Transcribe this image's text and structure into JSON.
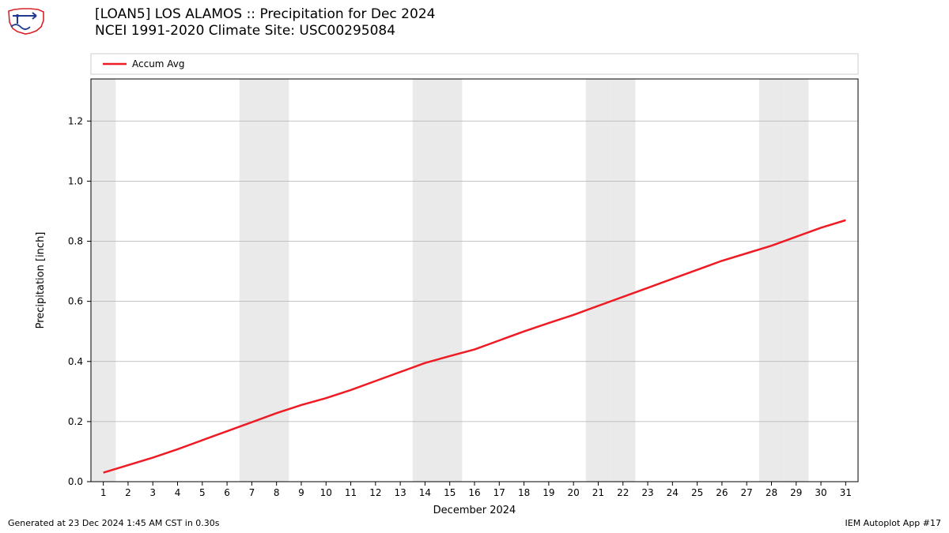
{
  "title_line1": "[LOAN5] LOS ALAMOS :: Precipitation for Dec 2024",
  "title_line2": "NCEI 1991-2020 Climate Site: USC00295084",
  "footer_left": "Generated at 23 Dec 2024 1:45 AM CST in 0.30s",
  "footer_right": "IEM Autoplot App #17",
  "legend_label": "Accum Avg",
  "ylabel": "Precipitation [inch]",
  "xlabel": "December 2024",
  "chart": {
    "type": "line",
    "background_color": "#ffffff",
    "weekend_band_color": "#eaeaea",
    "grid_color": "#b0b0b0",
    "border_color": "#000000",
    "legend_border_color": "#cccccc",
    "line_color": "#ee1b24",
    "line_width": 2.5,
    "title_fontsize": 17,
    "label_fontsize": 13,
    "tick_fontsize": 12,
    "xlim": [
      0.5,
      31.5
    ],
    "ylim": [
      0.0,
      1.34
    ],
    "yticks": [
      0.0,
      0.2,
      0.4,
      0.6,
      0.8,
      1.0,
      1.2
    ],
    "xticks": [
      1,
      2,
      3,
      4,
      5,
      6,
      7,
      8,
      9,
      10,
      11,
      12,
      13,
      14,
      15,
      16,
      17,
      18,
      19,
      20,
      21,
      22,
      23,
      24,
      25,
      26,
      27,
      28,
      29,
      30,
      31
    ],
    "weekend_days": [
      1,
      7,
      8,
      14,
      15,
      21,
      22,
      28,
      29
    ],
    "x": [
      1,
      2,
      3,
      4,
      5,
      6,
      7,
      8,
      9,
      10,
      11,
      12,
      13,
      14,
      15,
      16,
      17,
      18,
      19,
      20,
      21,
      22,
      23,
      24,
      25,
      26,
      27,
      28,
      29,
      30,
      31
    ],
    "y": [
      0.03,
      0.055,
      0.08,
      0.108,
      0.138,
      0.168,
      0.198,
      0.228,
      0.255,
      0.278,
      0.305,
      0.335,
      0.365,
      0.395,
      0.418,
      0.44,
      0.47,
      0.5,
      0.528,
      0.555,
      0.585,
      0.615,
      0.645,
      0.675,
      0.705,
      0.735,
      0.76,
      0.785,
      0.815,
      0.845,
      0.87
    ]
  },
  "logo": {
    "outline_color": "#d82228",
    "symbol_color": "#203a8f"
  }
}
